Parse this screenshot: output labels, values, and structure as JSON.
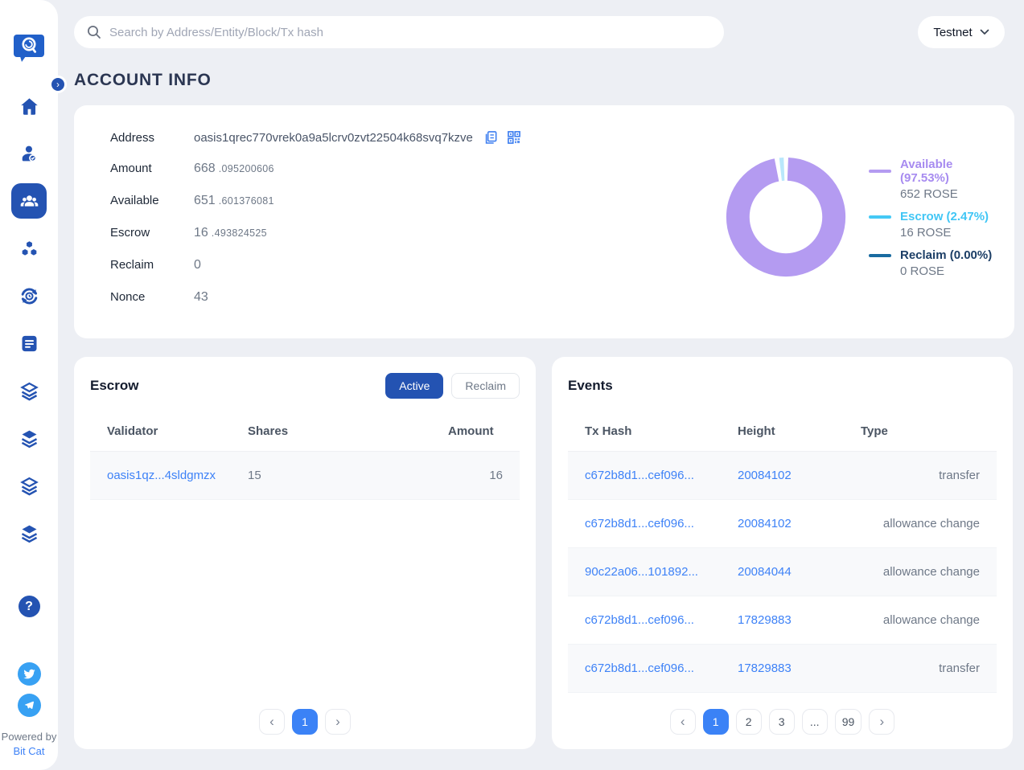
{
  "topbar": {
    "search_placeholder": "Search by Address/Entity/Block/Tx hash",
    "network": "Testnet"
  },
  "page": {
    "title": "ACCOUNT INFO"
  },
  "account": {
    "rows": [
      {
        "label": "Address",
        "value": "oasis1qrec770vrek0a9a5lcrv0zvt22504k68svq7kzve",
        "fraction": ""
      },
      {
        "label": "Amount",
        "value": "668",
        "fraction": ".095200606"
      },
      {
        "label": "Available",
        "value": "651",
        "fraction": ".601376081"
      },
      {
        "label": "Escrow",
        "value": "16",
        "fraction": ".493824525"
      },
      {
        "label": "Reclaim",
        "value": "0",
        "fraction": ""
      },
      {
        "label": "Nonce",
        "value": "43",
        "fraction": ""
      }
    ]
  },
  "chart_data": {
    "type": "pie",
    "subtype": "donut",
    "legend_position": "right",
    "slices": [
      {
        "label": "Available",
        "percent": 97.53,
        "legend_label": "Available (97.53%)",
        "amount": "652 ROSE",
        "color": "#b49bf1",
        "slice_color": "#b49bf1",
        "label_color": "#a78bf0"
      },
      {
        "label": "Escrow",
        "percent": 2.47,
        "legend_label": "Escrow (2.47%)",
        "amount": "16 ROSE",
        "color": "#45c9f5",
        "slice_color": "#b9e7fb",
        "label_color": "#41c6f5"
      },
      {
        "label": "Reclaim",
        "percent": 0.0,
        "legend_label": "Reclaim (0.00%)",
        "amount": "0 ROSE",
        "color": "#1a6ba0",
        "slice_color": "#1a6ba0",
        "label_color": "#1c3e66"
      }
    ]
  },
  "escrow_panel": {
    "title": "Escrow",
    "buttons": {
      "active": "Active",
      "reclaim": "Reclaim"
    },
    "headers": {
      "validator": "Validator",
      "shares": "Shares",
      "amount": "Amount"
    },
    "rows": [
      {
        "validator": "oasis1qz...4sldgmzx",
        "shares": "15",
        "amount": "16"
      }
    ],
    "pagination": {
      "current": "1",
      "pages": [
        "1"
      ]
    }
  },
  "events_panel": {
    "title": "Events",
    "headers": {
      "tx_hash": "Tx Hash",
      "height": "Height",
      "type": "Type"
    },
    "rows": [
      {
        "tx_hash": "c672b8d1...cef096...",
        "height": "20084102",
        "type": "transfer"
      },
      {
        "tx_hash": "c672b8d1...cef096...",
        "height": "20084102",
        "type": "allowance change"
      },
      {
        "tx_hash": "90c22a06...101892...",
        "height": "20084044",
        "type": "allowance change"
      },
      {
        "tx_hash": "c672b8d1...cef096...",
        "height": "17829883",
        "type": "allowance change"
      },
      {
        "tx_hash": "c672b8d1...cef096...",
        "height": "17829883",
        "type": "transfer"
      }
    ],
    "pagination": {
      "current": "1",
      "pages": [
        "1",
        "2",
        "3",
        "...",
        "99"
      ]
    }
  },
  "sidebar": {
    "items": [
      "home",
      "validators",
      "accounts",
      "blocks",
      "transactions",
      "proposals",
      "paratime-1",
      "paratime-2",
      "paratime-3",
      "paratime-4"
    ],
    "active_item": "accounts",
    "footer": {
      "powered_by": "Powered by",
      "brand": "Bit Cat"
    }
  },
  "colors": {
    "accent_dark_blue": "#2453b2",
    "link_blue": "#3e82f7",
    "active_page_blue": "#3b82f6",
    "page_background": "#edeff4"
  }
}
